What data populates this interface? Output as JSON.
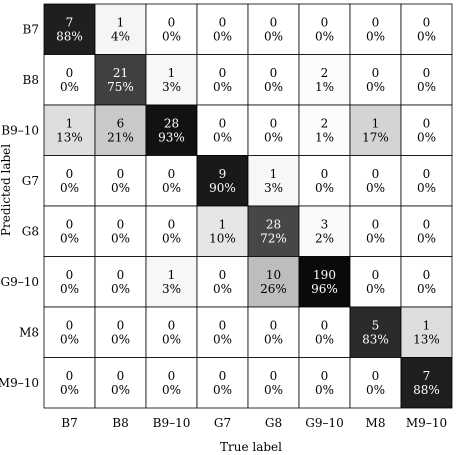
{
  "chart_data": {
    "type": "heatmap",
    "xlabel": "True label",
    "ylabel": "Predicted label",
    "x_categories": [
      "B7",
      "B8",
      "B9–10",
      "G7",
      "G8",
      "G9–10",
      "M8",
      "M9–10"
    ],
    "y_categories": [
      "B7",
      "B8",
      "B9–10",
      "G7",
      "G8",
      "G9–10",
      "M8",
      "M9–10"
    ],
    "counts": [
      [
        7,
        1,
        0,
        0,
        0,
        0,
        0,
        0
      ],
      [
        0,
        21,
        1,
        0,
        0,
        2,
        0,
        0
      ],
      [
        1,
        6,
        28,
        0,
        0,
        2,
        1,
        0
      ],
      [
        0,
        0,
        0,
        9,
        1,
        0,
        0,
        0
      ],
      [
        0,
        0,
        0,
        1,
        28,
        3,
        0,
        0
      ],
      [
        0,
        0,
        1,
        0,
        10,
        190,
        0,
        0
      ],
      [
        0,
        0,
        0,
        0,
        0,
        0,
        5,
        1
      ],
      [
        0,
        0,
        0,
        0,
        0,
        0,
        0,
        7
      ]
    ],
    "percentages": [
      [
        "88%",
        "4%",
        "0%",
        "0%",
        "0%",
        "0%",
        "0%",
        "0%"
      ],
      [
        "0%",
        "75%",
        "3%",
        "0%",
        "0%",
        "1%",
        "0%",
        "0%"
      ],
      [
        "13%",
        "21%",
        "93%",
        "0%",
        "0%",
        "1%",
        "17%",
        "0%"
      ],
      [
        "0%",
        "0%",
        "0%",
        "90%",
        "3%",
        "0%",
        "0%",
        "0%"
      ],
      [
        "0%",
        "0%",
        "0%",
        "10%",
        "72%",
        "2%",
        "0%",
        "0%"
      ],
      [
        "0%",
        "0%",
        "3%",
        "0%",
        "26%",
        "96%",
        "0%",
        "0%"
      ],
      [
        "0%",
        "0%",
        "0%",
        "0%",
        "0%",
        "0%",
        "83%",
        "13%"
      ],
      [
        "0%",
        "0%",
        "0%",
        "0%",
        "0%",
        "0%",
        "0%",
        "88%"
      ]
    ],
    "colormap": "greys",
    "grid": true
  }
}
